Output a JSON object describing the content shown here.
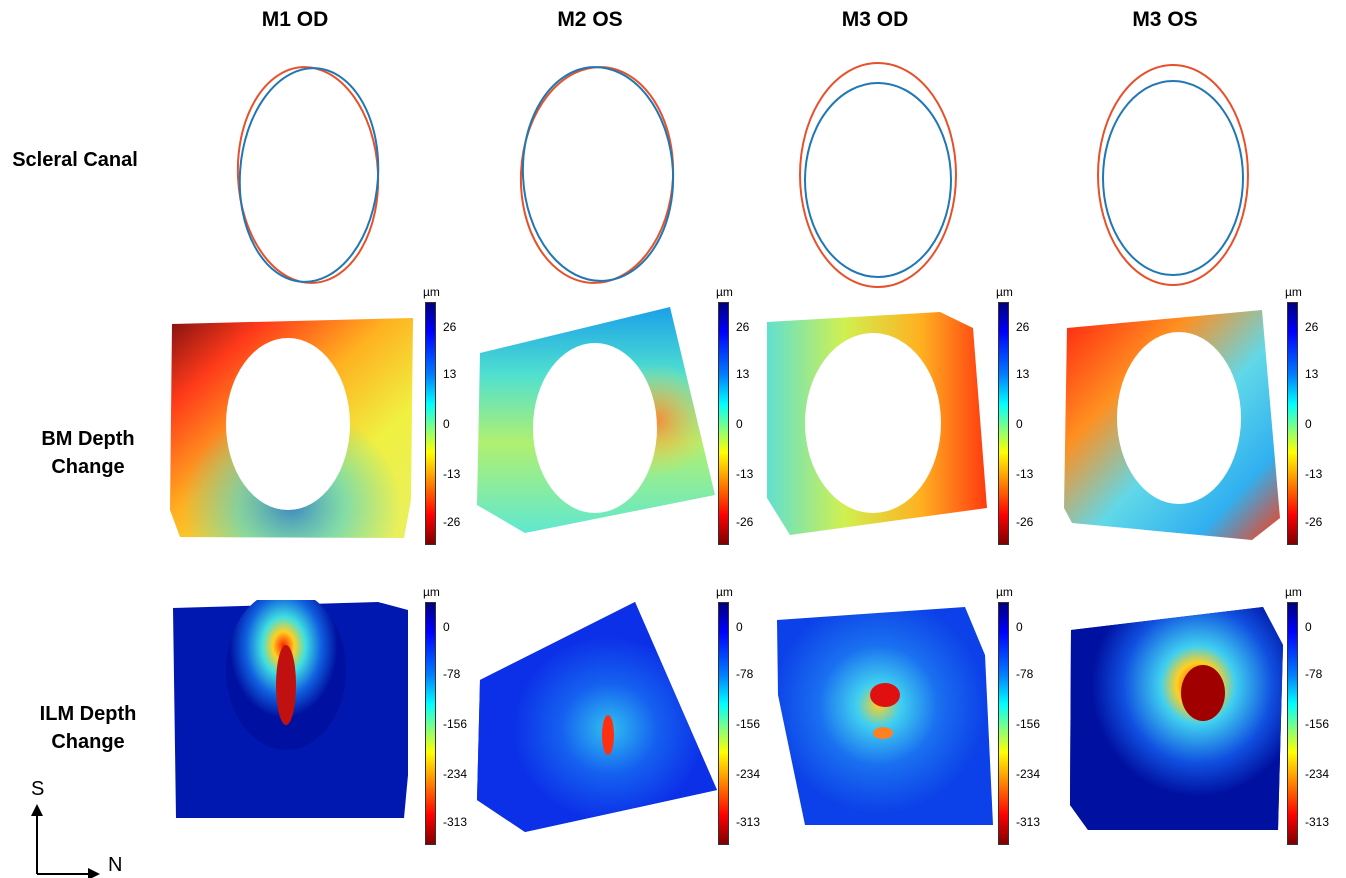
{
  "columns": [
    "M1 OD",
    "M2 OS",
    "M3 OD",
    "M3 OS"
  ],
  "rows": {
    "scleral": [
      "Scleral Canal"
    ],
    "bm": [
      "BM Depth",
      "Change"
    ],
    "ilm": [
      "ILM Depth",
      "Change"
    ]
  },
  "colorbars": {
    "unit": "µm",
    "bm_ticks": [
      "26",
      "13",
      "0",
      "-13",
      "-26"
    ],
    "ilm_ticks": [
      "0",
      "-78",
      "-156",
      "-234",
      "-313"
    ]
  },
  "compass": {
    "up": "S",
    "right": "N"
  },
  "colors": {
    "outline_blue": "#1f77b4",
    "outline_red": "#e8502a"
  }
}
